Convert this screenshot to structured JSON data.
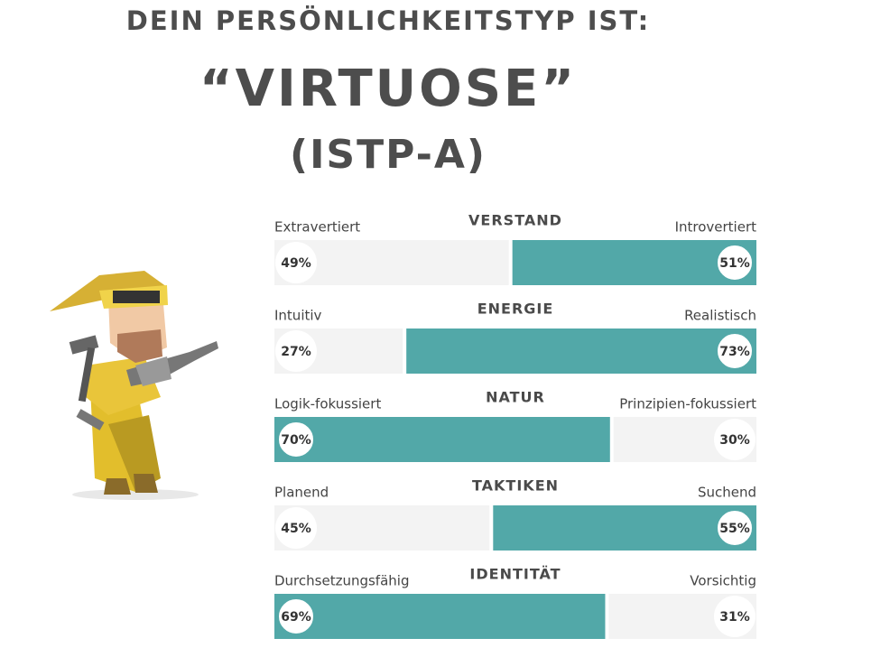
{
  "header": {
    "intro": "DEIN PERSÖNLICHKEITSTYP IST:",
    "type_name": "“VIRTUOSE”",
    "code": "(ISTP-A)"
  },
  "bar_color": "#52a8a8",
  "traits": [
    {
      "name": "VERSTAND",
      "left": "Extravertiert",
      "right": "Introvertiert",
      "left_value": {
        "value": 49,
        "label": "49%"
      },
      "right_value": {
        "value": 51,
        "label": "51%"
      }
    },
    {
      "name": "ENERGIE",
      "left": "Intuitiv",
      "right": "Realistisch",
      "left_value": {
        "value": 27,
        "label": "27%"
      },
      "right_value": {
        "value": 73,
        "label": "73%"
      }
    },
    {
      "name": "NATUR",
      "left": "Logik-fokussiert",
      "right": "Prinzipien-fokussiert",
      "left_value": {
        "value": 70,
        "label": "70%"
      },
      "right_value": {
        "value": 30,
        "label": "30%"
      }
    },
    {
      "name": "TAKTIKEN",
      "left": "Planend",
      "right": "Suchend",
      "left_value": {
        "value": 45,
        "label": "45%"
      },
      "right_value": {
        "value": 55,
        "label": "55%"
      }
    },
    {
      "name": "IDENTITÄT",
      "left": "Durchsetzungsfähig",
      "right": "Vorsichtig",
      "left_value": {
        "value": 69,
        "label": "69%"
      },
      "right_value": {
        "value": 31,
        "label": "31%"
      }
    }
  ]
}
